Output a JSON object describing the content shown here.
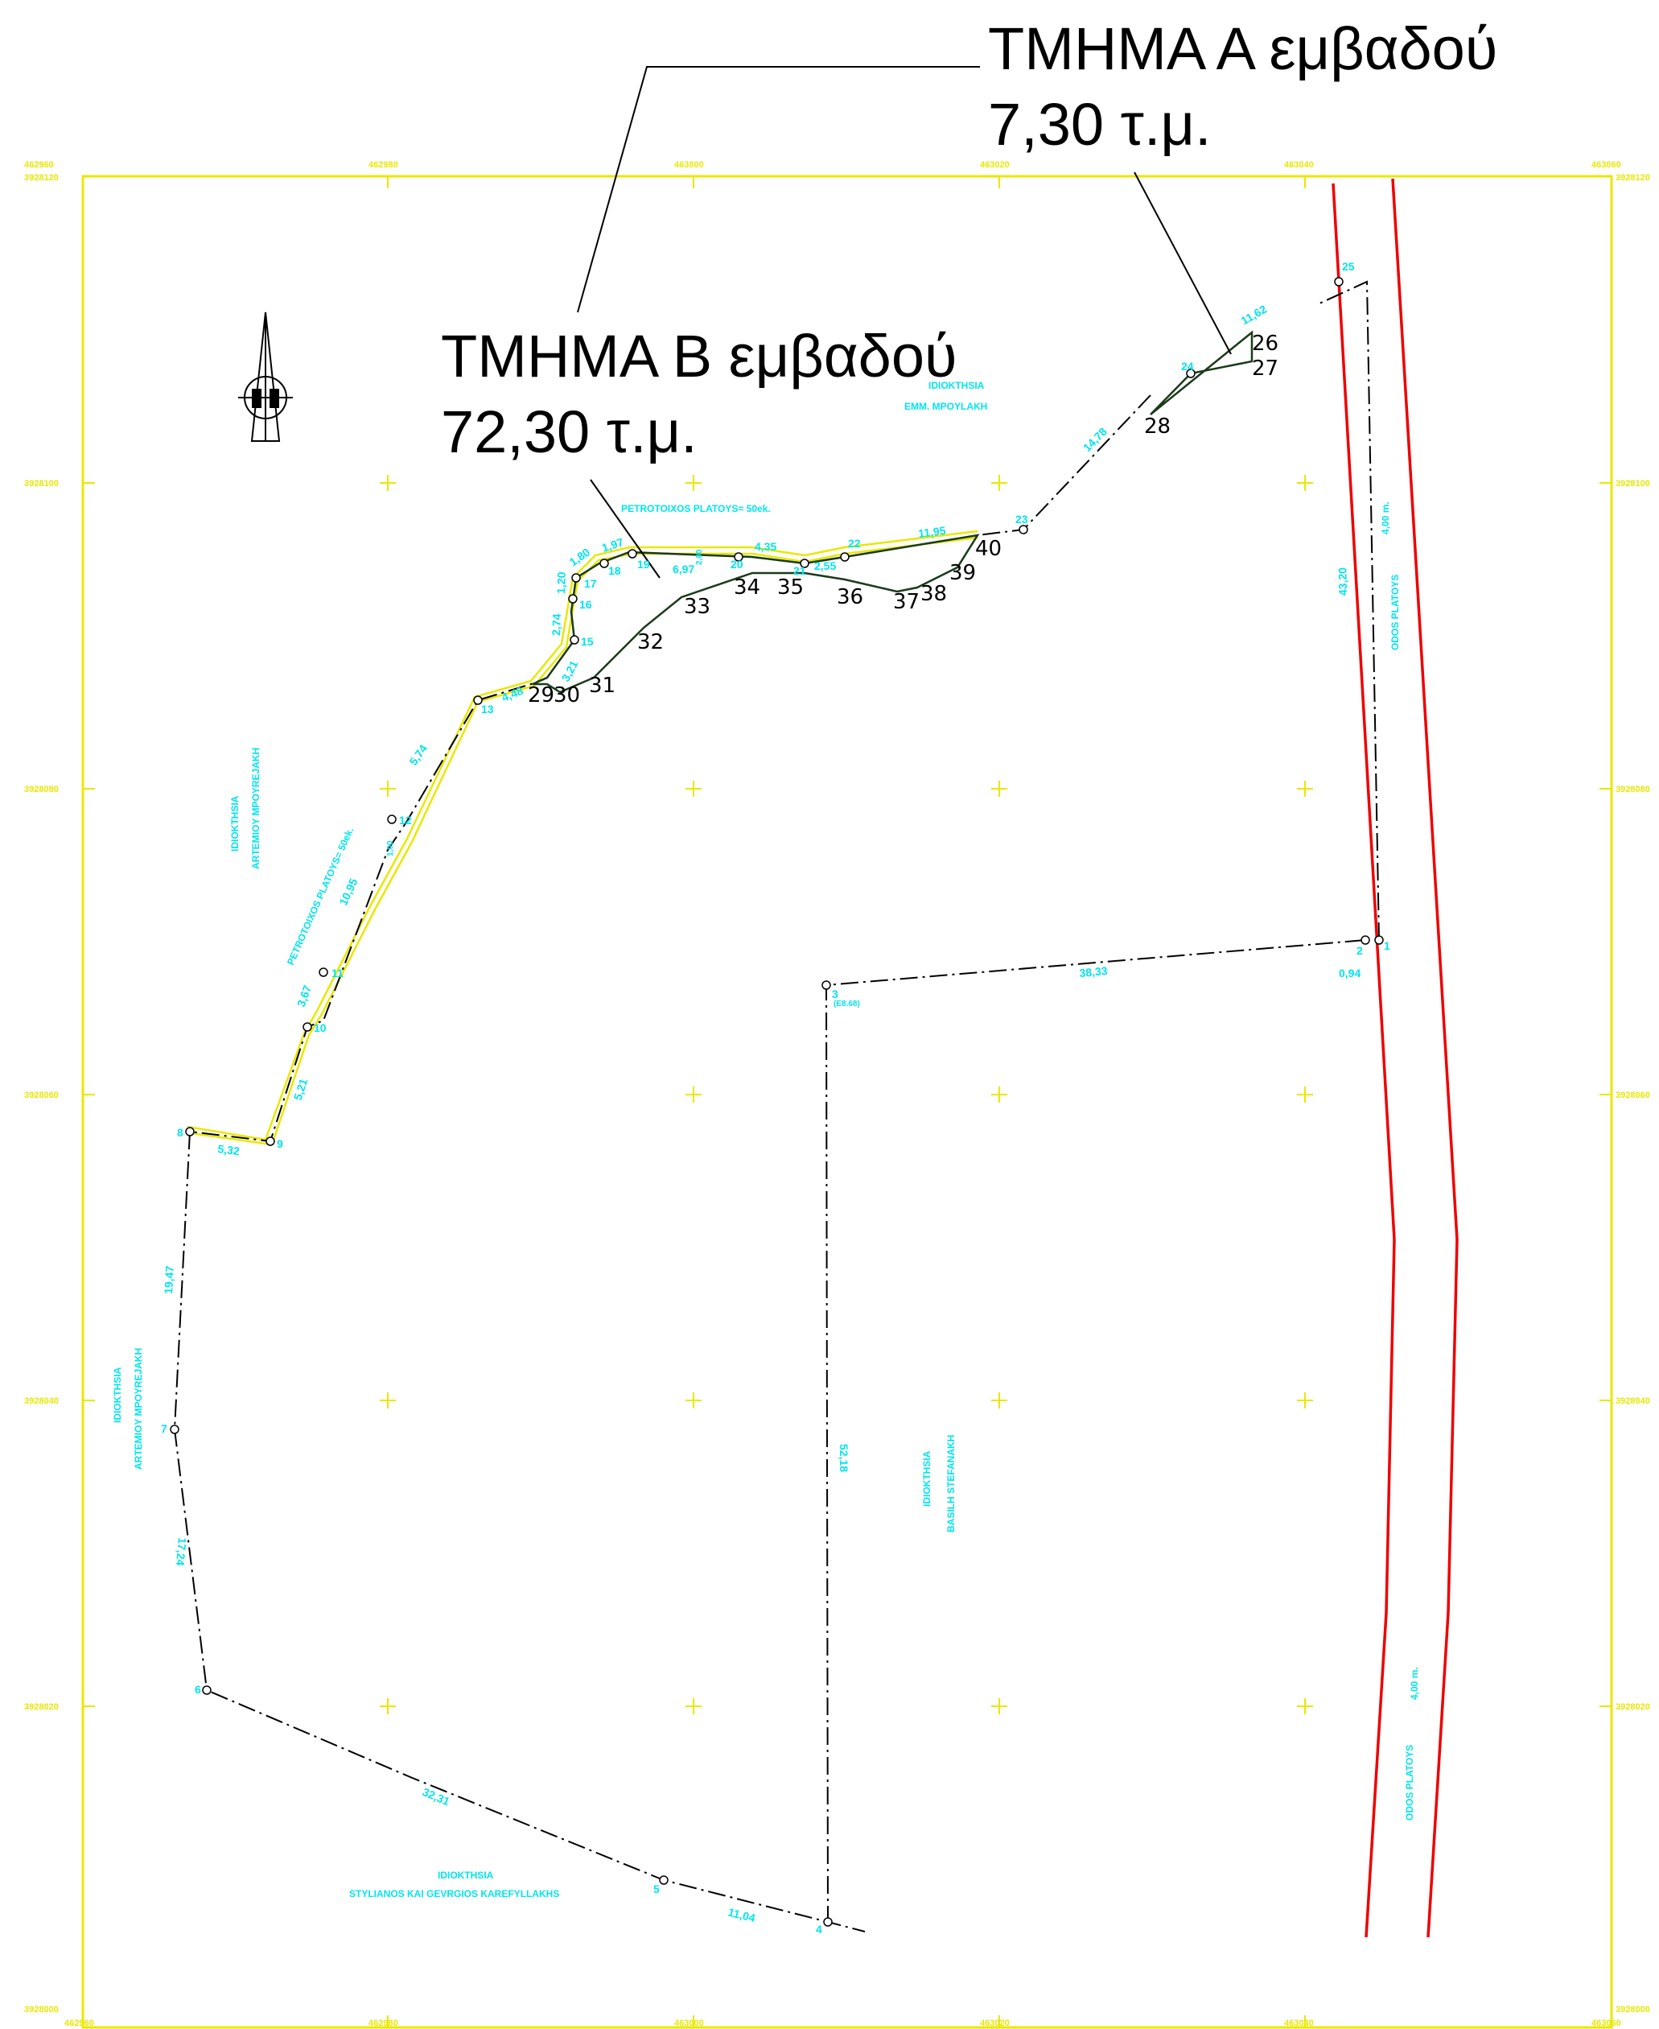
{
  "callouts": {
    "part_a_line1": "ΤΜΗΜΑ Α εμβαδού",
    "part_a_line2": "7,30 τ.μ.",
    "part_b_line1": "ΤΜΗΜΑ Β εμβαδού",
    "part_b_line2": "72,30 τ.μ."
  },
  "colors": {
    "frame": "#e8e800",
    "road": "#ee0000",
    "labels": "#00e5ee",
    "parts": "#1a3a1a",
    "boundary": "#000000"
  },
  "grid": {
    "x_top": [
      "462960",
      "462980",
      "463000",
      "463020",
      "463040",
      "463060"
    ],
    "x_bottom": [
      "462960",
      "462980",
      "463000",
      "463020",
      "463040",
      "463060"
    ],
    "y_left": [
      "3928120",
      "3928100",
      "3928080",
      "3928060",
      "3928040",
      "3928020",
      "3928000"
    ],
    "y_right": [
      "3928120",
      "3928100",
      "3928080",
      "3928060",
      "3928040",
      "3928020",
      "3928000"
    ]
  },
  "north_arrow_icon": "north-arrow-icon",
  "owners": {
    "top_right": [
      "IDIOKTHSIA",
      "EMM. MPOYLAKH"
    ],
    "left_upper": [
      "IDIOKTHSIA",
      "ARTEMIOY MPOYREJAKH"
    ],
    "left_lower": [
      "IDIOKTHSIA",
      "ARTEMIOY MPOYREJAKH"
    ],
    "center": [
      "IDIOKTHSIA",
      "BASILH STEFANAKH"
    ],
    "bottom": [
      "IDIOKTHSIA",
      "STYLIANOS KAI GEVRGIOS KAREFYLLAKHS"
    ]
  },
  "road_labels": {
    "torrent_top": "PETROTOIXOS PLATOYS= 50ek.",
    "torrent_left": "PETROTOIXOS PLATOYS= 50ek.",
    "road_name_upper": "ODOS PLATOYS",
    "road_width_upper": "4,00 m.",
    "road_name_lower": "ODOS PLATOYS",
    "road_width_lower": "4,00 m."
  },
  "distances": [
    "11,04",
    "32,31",
    "17,24",
    "19,47",
    "5,32",
    "5,21",
    "3,67",
    "10,95",
    "5,74",
    "4,48",
    "3,21",
    "2,74",
    "1,20",
    "1,80",
    "1,97",
    "6,97",
    "4,35",
    "2,55",
    "11,95",
    "14,78",
    "11,62",
    "43,20",
    "0,94",
    "38,33",
    "52,18",
    "2,00",
    "1,00"
  ],
  "boundary_points": [
    "1",
    "2",
    "3",
    "4",
    "5",
    "6",
    "7",
    "8",
    "9",
    "10",
    "11",
    "12",
    "13",
    "15",
    "16",
    "17",
    "18",
    "19",
    "20",
    "21",
    "22",
    "23",
    "24",
    "25"
  ],
  "part_points": [
    "26",
    "27",
    "28",
    "29",
    "30",
    "31",
    "32",
    "33",
    "34",
    "35",
    "36",
    "37",
    "38",
    "39",
    "40"
  ],
  "area_label": "(E8.68)"
}
